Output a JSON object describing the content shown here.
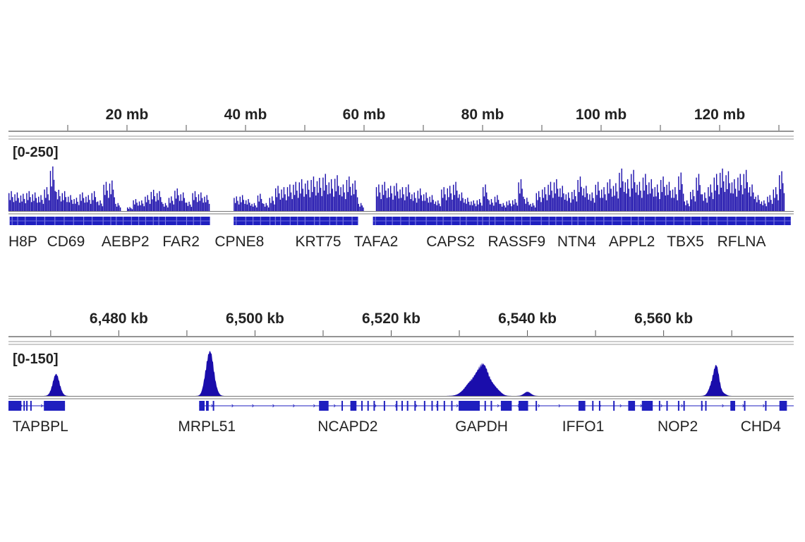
{
  "colors": {
    "signal": "#1a0dab",
    "gene": "#1f1fbf",
    "axis": "#555555",
    "text": "#222222"
  },
  "chart_data": [
    {
      "type": "bar",
      "xunit": "mb",
      "xlim": [
        0,
        132.5
      ],
      "ylim": [
        0,
        250
      ],
      "range_label": "[0-250]",
      "ticks": [
        10,
        20,
        30,
        40,
        50,
        60,
        70,
        80,
        90,
        100,
        110,
        120,
        130
      ],
      "tick_labels": [
        {
          "value": 20,
          "label": "20 mb"
        },
        {
          "value": 40,
          "label": "40 mb"
        },
        {
          "value": 60,
          "label": "60 mb"
        },
        {
          "value": 80,
          "label": "80 mb"
        },
        {
          "value": 100,
          "label": "100 mb"
        },
        {
          "value": 120,
          "label": "120 mb"
        }
      ],
      "bin_start": 0,
      "bin_size_mb": 1,
      "values": [
        75,
        70,
        65,
        75,
        70,
        60,
        90,
        168,
        80,
        75,
        60,
        50,
        70,
        60,
        75,
        40,
        110,
        115,
        30,
        0,
        15,
        45,
        40,
        60,
        80,
        75,
        30,
        55,
        85,
        70,
        35,
        75,
        70,
        60,
        0,
        0,
        0,
        0,
        55,
        60,
        45,
        30,
        65,
        30,
        55,
        95,
        90,
        100,
        110,
        120,
        115,
        130,
        125,
        140,
        120,
        135,
        100,
        130,
        115,
        30,
        0,
        0,
        100,
        110,
        95,
        105,
        90,
        100,
        70,
        85,
        70,
        60,
        40,
        90,
        95,
        110,
        70,
        50,
        40,
        45,
        100,
        45,
        60,
        30,
        40,
        45,
        120,
        50,
        30,
        75,
        90,
        110,
        120,
        95,
        70,
        80,
        130,
        95,
        70,
        110,
        90,
        120,
        105,
        160,
        120,
        155,
        110,
        140,
        120,
        100,
        130,
        110,
        90,
        145,
        40,
        80,
        140,
        70,
        100,
        140,
        160,
        150,
        120,
        140,
        155,
        100,
        60,
        40,
        60,
        90,
        150
      ],
      "gene_segments": [
        [
          0.2,
          34
        ],
        [
          38,
          59
        ],
        [
          61.5,
          132
        ]
      ],
      "genes": [
        {
          "name": "H8P",
          "pos": 0
        },
        {
          "name": "CD69",
          "pos": 6.5
        },
        {
          "name": "AEBP2",
          "pos": 15.7
        },
        {
          "name": "FAR2",
          "pos": 26
        },
        {
          "name": "CPNE8",
          "pos": 34.8
        },
        {
          "name": "KRT75",
          "pos": 48.4
        },
        {
          "name": "TAFA2",
          "pos": 58.3
        },
        {
          "name": "CAPS2",
          "pos": 70.5
        },
        {
          "name": "RASSF9",
          "pos": 80.9
        },
        {
          "name": "NTN4",
          "pos": 92.6
        },
        {
          "name": "APPL2",
          "pos": 101.3
        },
        {
          "name": "TBX5",
          "pos": 111.1
        },
        {
          "name": "RFLNA",
          "pos": 119.6
        }
      ]
    },
    {
      "type": "area",
      "xunit": "kb",
      "xlim": [
        6463.8,
        6579.1
      ],
      "ylim": [
        0,
        150
      ],
      "range_label": "[0-150]",
      "ticks": [
        6470,
        6480,
        6490,
        6500,
        6510,
        6520,
        6530,
        6540,
        6550,
        6560,
        6570
      ],
      "tick_labels": [
        {
          "value": 6480,
          "label": "6,480 kb"
        },
        {
          "value": 6500,
          "label": "6,500 kb"
        },
        {
          "value": 6520,
          "label": "6,520 kb"
        },
        {
          "value": 6540,
          "label": "6,540 kb"
        },
        {
          "value": 6560,
          "label": "6,560 kb"
        }
      ],
      "peaks": [
        {
          "center": 6470.8,
          "height": 80,
          "width": 0.5
        },
        {
          "center": 6493.0,
          "height": 100,
          "width": 0.45
        },
        {
          "center": 6493.6,
          "height": 105,
          "width": 0.4
        },
        {
          "center": 6494.2,
          "height": 20,
          "width": 0.4
        },
        {
          "center": 6532.0,
          "height": 55,
          "width": 1.1
        },
        {
          "center": 6533.6,
          "height": 95,
          "width": 0.8
        },
        {
          "center": 6535.3,
          "height": 25,
          "width": 0.7
        },
        {
          "center": 6540.0,
          "height": 15,
          "width": 0.5
        },
        {
          "center": 6567.2,
          "height": 45,
          "width": 0.5
        },
        {
          "center": 6567.8,
          "height": 88,
          "width": 0.4
        },
        {
          "center": 6568.8,
          "height": 8,
          "width": 0.4
        }
      ],
      "transcripts": [
        [
          6463.8,
          6472.1
        ],
        [
          6491.8,
          6579.1
        ]
      ],
      "exons": [
        [
          6463.8,
          6465.7
        ],
        [
          6466.0,
          6466.2
        ],
        [
          6466.4,
          6466.6
        ],
        [
          6467.0,
          6467.2
        ],
        [
          6469.0,
          6472.1
        ],
        [
          6491.8,
          6492.6
        ],
        [
          6492.8,
          6493.2
        ],
        [
          6493.8,
          6494.0
        ],
        [
          6509.4,
          6510.8
        ],
        [
          6512.7,
          6512.9
        ],
        [
          6514.0,
          6514.9
        ],
        [
          6515.6,
          6515.8
        ],
        [
          6516.5,
          6516.7
        ],
        [
          6517.4,
          6517.6
        ],
        [
          6518.9,
          6519.1
        ],
        [
          6520.7,
          6520.9
        ],
        [
          6521.5,
          6521.7
        ],
        [
          6522.3,
          6522.5
        ],
        [
          6523.4,
          6523.6
        ],
        [
          6524.8,
          6525.0
        ],
        [
          6525.9,
          6526.1
        ],
        [
          6526.7,
          6526.9
        ],
        [
          6527.7,
          6527.9
        ],
        [
          6528.8,
          6529.0
        ],
        [
          6529.9,
          6533.0
        ],
        [
          6533.7,
          6533.9
        ],
        [
          6534.6,
          6534.8
        ],
        [
          6536.1,
          6537.7
        ],
        [
          6538.7,
          6540.1
        ],
        [
          6541.2,
          6541.4
        ],
        [
          6547.5,
          6548.5
        ],
        [
          6549.5,
          6549.7
        ],
        [
          6550.5,
          6550.7
        ],
        [
          6552.6,
          6552.8
        ],
        [
          6554.8,
          6555.8
        ],
        [
          6556.8,
          6558.4
        ],
        [
          6559.3,
          6559.5
        ],
        [
          6560.4,
          6560.6
        ],
        [
          6562.1,
          6562.3
        ],
        [
          6562.9,
          6563.1
        ],
        [
          6565.5,
          6565.7
        ],
        [
          6566.1,
          6566.3
        ],
        [
          6569.8,
          6570.5
        ],
        [
          6571.8,
          6572.0
        ],
        [
          6574.9,
          6575.1
        ],
        [
          6577.0,
          6578.1
        ]
      ],
      "genes": [
        {
          "name": "TAPBPL",
          "pos": 6464.4
        },
        {
          "name": "MRPL51",
          "pos": 6488.7
        },
        {
          "name": "NCAPD2",
          "pos": 6509.2
        },
        {
          "name": "GAPDH",
          "pos": 6529.4
        },
        {
          "name": "IFFO1",
          "pos": 6545.1
        },
        {
          "name": "NOP2",
          "pos": 6559.1
        },
        {
          "name": "CHD4",
          "pos": 6571.3
        }
      ]
    }
  ]
}
